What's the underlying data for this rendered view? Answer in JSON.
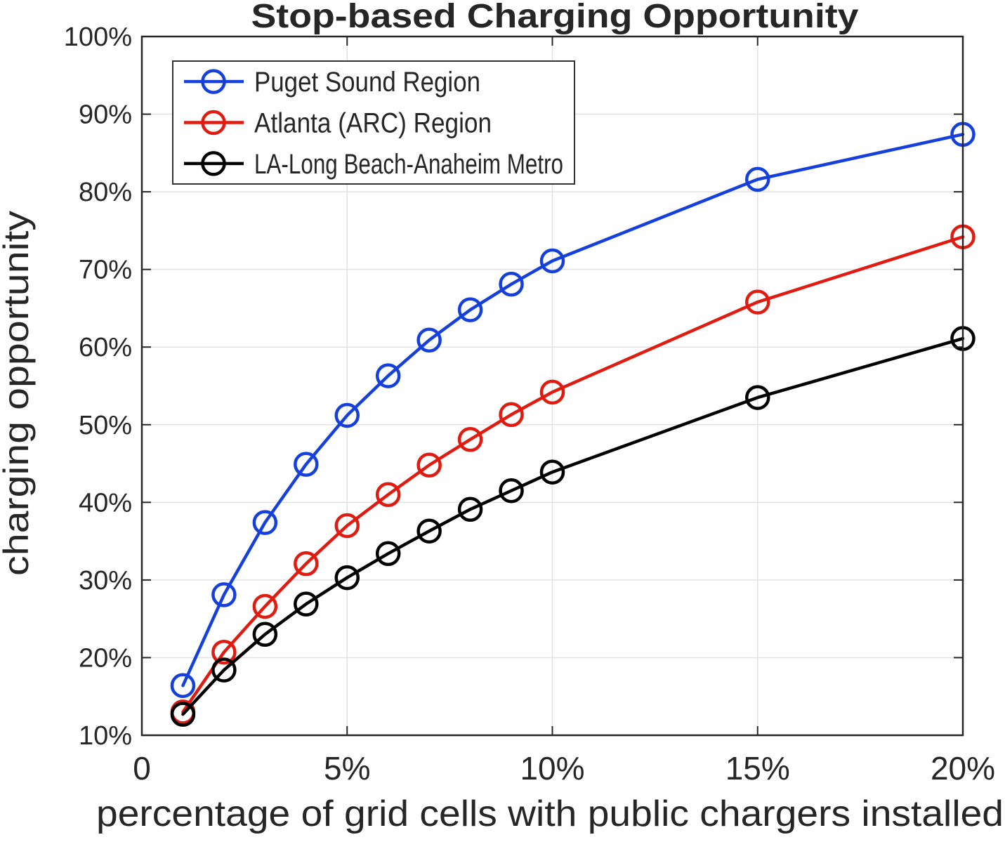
{
  "chart_data": {
    "type": "line",
    "title": "Stop-based Charging Opportunity",
    "xlabel": "percentage of grid cells with public chargers installed",
    "ylabel": "charging opportunity",
    "xlim": [
      0,
      20
    ],
    "ylim": [
      10,
      100
    ],
    "grid": true,
    "legend_position": "top-left",
    "x": [
      1,
      2,
      3,
      4,
      5,
      6,
      7,
      8,
      9,
      10,
      15,
      20
    ],
    "x_ticks": [
      {
        "v": 0,
        "label": "0"
      },
      {
        "v": 5,
        "label": "5%"
      },
      {
        "v": 10,
        "label": "10%"
      },
      {
        "v": 15,
        "label": "15%"
      },
      {
        "v": 20,
        "label": "20%"
      }
    ],
    "y_ticks": [
      {
        "v": 10,
        "label": "10%"
      },
      {
        "v": 20,
        "label": "20%"
      },
      {
        "v": 30,
        "label": "30%"
      },
      {
        "v": 40,
        "label": "40%"
      },
      {
        "v": 50,
        "label": "50%"
      },
      {
        "v": 60,
        "label": "60%"
      },
      {
        "v": 70,
        "label": "70%"
      },
      {
        "v": 80,
        "label": "80%"
      },
      {
        "v": 90,
        "label": "90%"
      },
      {
        "v": 100,
        "label": "100%"
      }
    ],
    "series": [
      {
        "name": "Puget Sound Region",
        "color": "#1540dc",
        "marker": "circle",
        "values": [
          16.4,
          28.1,
          37.4,
          44.9,
          51.2,
          56.3,
          60.9,
          64.8,
          68.1,
          71.1,
          81.6,
          87.4
        ]
      },
      {
        "name": "Atlanta (ARC) Region",
        "color": "#e01b10",
        "marker": "circle",
        "values": [
          13.0,
          20.7,
          26.6,
          32.1,
          37.0,
          41.0,
          44.8,
          48.1,
          51.3,
          54.2,
          65.8,
          74.2
        ]
      },
      {
        "name": "LA-Long Beach-Anaheim Metro",
        "color": "#000000",
        "marker": "circle",
        "values": [
          12.7,
          18.4,
          23.0,
          26.9,
          30.3,
          33.4,
          36.3,
          39.1,
          41.5,
          43.9,
          53.5,
          61.1
        ]
      }
    ],
    "axis_color": "#262626",
    "grid_color": "#e2e2e2",
    "legend_border_color": "#333333",
    "background_color": "#ffffff"
  }
}
